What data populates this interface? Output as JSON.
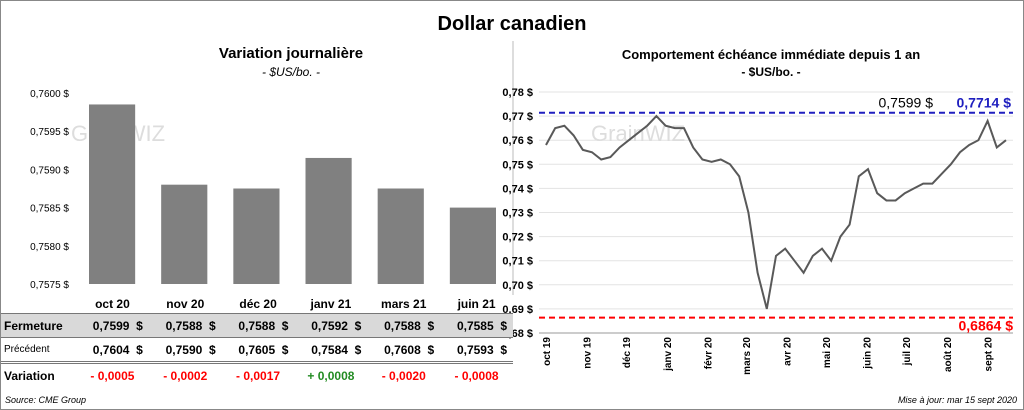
{
  "title": "Dollar canadien",
  "source": "Source: CME Group",
  "updated": "Mise à jour: mar 15 sept 2020",
  "watermark": "GrainWIZ",
  "colors": {
    "bar": "#808080",
    "line": "#595959",
    "high": "#1f1fbf",
    "low": "#ff0000",
    "neg": "#ff0000",
    "pos": "#228b22"
  },
  "table": {
    "row_labels": [
      "Fermeture",
      "Précédent",
      "Variation"
    ],
    "columns": [
      "oct 20",
      "nov 20",
      "déc 20",
      "janv 21",
      "mars 21",
      "juin 21"
    ],
    "fermeture": [
      "0,7599",
      "0,7588",
      "0,7588",
      "0,7592",
      "0,7588",
      "0,7585"
    ],
    "precedent": [
      "0,7604",
      "0,7590",
      "0,7605",
      "0,7584",
      "0,7608",
      "0,7593"
    ],
    "variation": [
      "- 0,0005",
      "- 0,0002",
      "- 0,0017",
      "+ 0,0008",
      "- 0,0020",
      "- 0,0008"
    ],
    "currency": "$"
  },
  "chart_data": [
    {
      "type": "bar",
      "title": "Variation  journalière",
      "subtitle": "- $US/bo. -",
      "categories": [
        "oct 20",
        "nov 20",
        "déc 20",
        "janv 21",
        "mars 21",
        "juin 21"
      ],
      "values": [
        0.75985,
        0.7588,
        0.75875,
        0.75915,
        0.75875,
        0.7585
      ],
      "ylim": [
        0.7575,
        0.76
      ],
      "yticks": [
        "0,7575 $",
        "0,7580 $",
        "0,7585 $",
        "0,7590 $",
        "0,7595 $",
        "0,7600 $"
      ],
      "grid": false
    },
    {
      "type": "line",
      "title": "Comportement échéance immédiate depuis 1 an",
      "subtitle": "- $US/bo. -",
      "ylim": [
        0.68,
        0.78
      ],
      "yticks": [
        "0,68 $",
        "0,69 $",
        "0,70 $",
        "0,71 $",
        "0,72 $",
        "0,73 $",
        "0,74 $",
        "0,75 $",
        "0,76 $",
        "0,77 $",
        "0,78 $"
      ],
      "xticks": [
        [
          "oct 19",
          "2019-10-01"
        ],
        [
          "nov 19",
          "2019-11-01"
        ],
        [
          "déc 19",
          "2019-12-01"
        ],
        [
          "janv 20",
          "2020-01-01"
        ],
        [
          "févr 20",
          "2020-02-01"
        ],
        [
          "mars 20",
          "2020-03-01"
        ],
        [
          "avr 20",
          "2020-04-01"
        ],
        [
          "mai 20",
          "2020-05-01"
        ],
        [
          "juin 20",
          "2020-06-01"
        ],
        [
          "juil 20",
          "2020-07-01"
        ],
        [
          "août 20",
          "2020-08-01"
        ],
        [
          "sept 20",
          "2020-09-01"
        ]
      ],
      "xlim": [
        "2019-10-01",
        "2020-09-15"
      ],
      "x": [
        "2019-10-01",
        "2019-10-08",
        "2019-10-15",
        "2019-10-22",
        "2019-10-29",
        "2019-11-05",
        "2019-11-12",
        "2019-11-19",
        "2019-11-26",
        "2019-12-03",
        "2019-12-10",
        "2019-12-17",
        "2019-12-24",
        "2019-12-31",
        "2020-01-07",
        "2020-01-14",
        "2020-01-21",
        "2020-01-28",
        "2020-02-04",
        "2020-02-11",
        "2020-02-18",
        "2020-02-25",
        "2020-03-03",
        "2020-03-10",
        "2020-03-17",
        "2020-03-24",
        "2020-03-31",
        "2020-04-07",
        "2020-04-14",
        "2020-04-21",
        "2020-04-28",
        "2020-05-05",
        "2020-05-12",
        "2020-05-19",
        "2020-05-26",
        "2020-06-02",
        "2020-06-09",
        "2020-06-16",
        "2020-06-23",
        "2020-06-30",
        "2020-07-07",
        "2020-07-14",
        "2020-07-21",
        "2020-07-28",
        "2020-08-04",
        "2020-08-11",
        "2020-08-18",
        "2020-08-25",
        "2020-09-01",
        "2020-09-08",
        "2020-09-15"
      ],
      "y": [
        0.758,
        0.765,
        0.766,
        0.762,
        0.756,
        0.755,
        0.752,
        0.753,
        0.757,
        0.76,
        0.763,
        0.766,
        0.77,
        0.766,
        0.765,
        0.765,
        0.757,
        0.752,
        0.751,
        0.752,
        0.75,
        0.745,
        0.73,
        0.705,
        0.69,
        0.712,
        0.715,
        0.71,
        0.705,
        0.712,
        0.715,
        0.71,
        0.72,
        0.725,
        0.745,
        0.748,
        0.738,
        0.735,
        0.735,
        0.738,
        0.74,
        0.742,
        0.742,
        0.746,
        0.75,
        0.755,
        0.758,
        0.76,
        0.768,
        0.757,
        0.76
      ],
      "high": {
        "value": 0.7714,
        "label": "0,7714 $"
      },
      "low": {
        "value": 0.6864,
        "label": "0,6864 $"
      },
      "last": {
        "value": 0.7599,
        "label": "0,7599 $"
      },
      "grid": true
    }
  ]
}
